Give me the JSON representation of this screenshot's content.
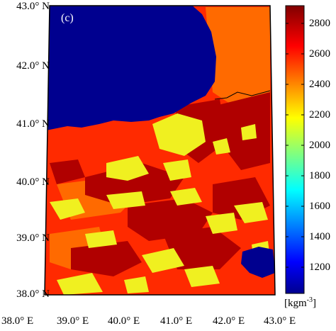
{
  "panel_tag": "(c)",
  "lat_labels": [
    "43.0° N",
    "42.0° N",
    "41.0° N",
    "40.0° N",
    "39.0° N",
    "38.0° N"
  ],
  "lon_labels": [
    "38.0° E",
    "39.0° E",
    "40.0° E",
    "41.0° E",
    "42.0° E",
    "43.0° E"
  ],
  "colorbar": {
    "ticks": [
      "2800",
      "2600",
      "2400",
      "2200",
      "2000",
      "1800",
      "1600",
      "1400",
      "1200"
    ],
    "unit_base": "[kgm",
    "unit_exp": "-3",
    "unit_close": "]",
    "min": 1000,
    "max": 2900,
    "colormap": "jet"
  },
  "colors": {
    "sea": "#00008f",
    "background_red": "#ff2a00",
    "orange": "#ff6a00",
    "dark_red": "#b00000",
    "yellow": "#f0f020"
  }
}
